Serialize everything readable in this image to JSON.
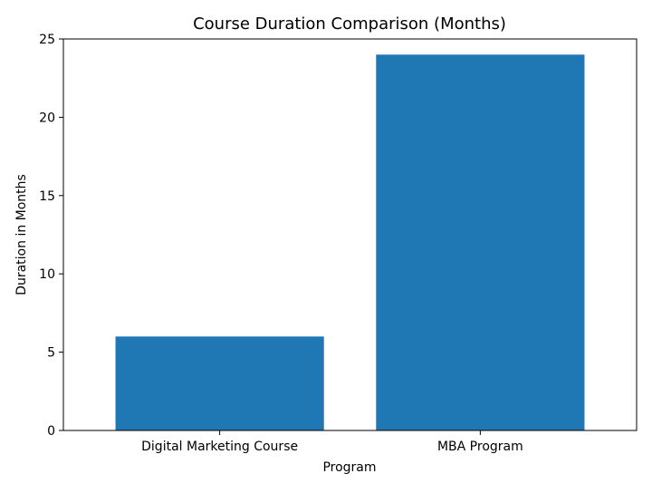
{
  "chart_data": {
    "type": "bar",
    "title": "Course Duration Comparison (Months)",
    "xlabel": "Program",
    "ylabel": "Duration in Months",
    "categories": [
      "Digital Marketing Course",
      "MBA Program"
    ],
    "values": [
      6,
      24
    ],
    "ylim": [
      0,
      25
    ],
    "yticks": [
      0,
      5,
      10,
      15,
      20,
      25
    ],
    "grid": false,
    "bar_color": "#1f77b4"
  }
}
